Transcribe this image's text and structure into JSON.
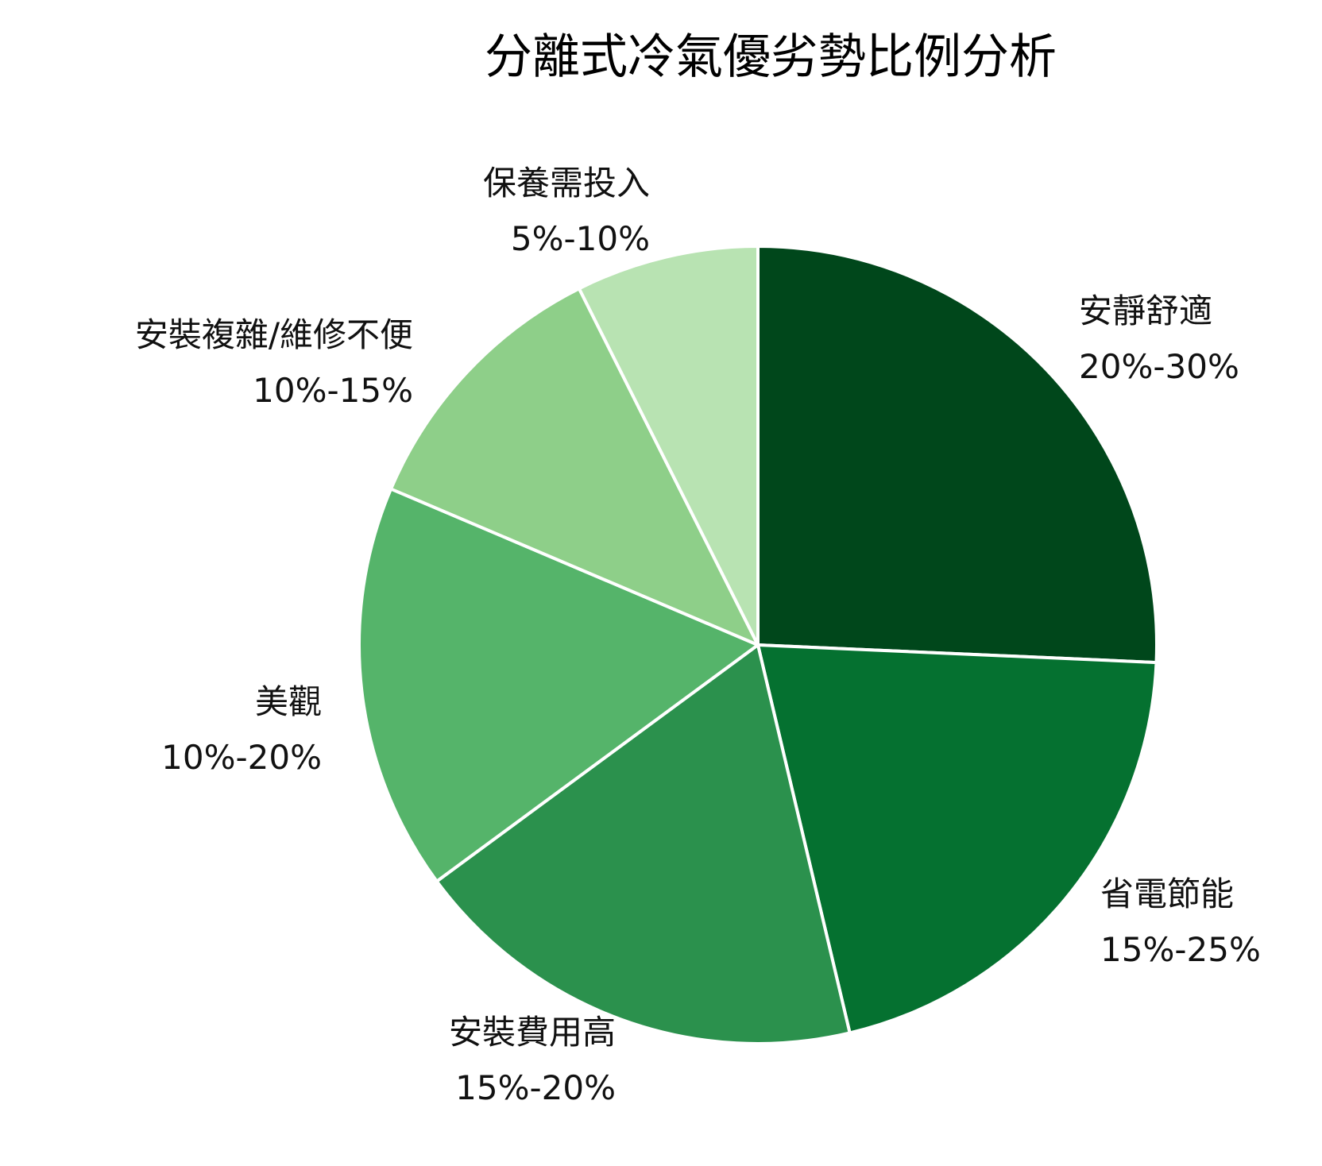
{
  "chart_data": {
    "type": "pie",
    "title": "分離式冷氣優劣勢比例分析",
    "start_angle_deg": 0,
    "direction": "clockwise",
    "slice_border_color": "#ffffff",
    "slices": [
      {
        "label": "安靜舒適",
        "range_text": "20%-30%",
        "value": 25.7,
        "color": "#00471b"
      },
      {
        "label": "省電節能",
        "range_text": "15%-25%",
        "value": 20.6,
        "color": "#057130"
      },
      {
        "label": "安裝費用高",
        "range_text": "15%-20%",
        "value": 18.6,
        "color": "#2b914d"
      },
      {
        "label": "美觀",
        "range_text": "10%-20%",
        "value": 16.5,
        "color": "#55b46a"
      },
      {
        "label": "安裝複雜/維修不便",
        "range_text": "10%-15%",
        "value": 11.2,
        "color": "#8ecf89"
      },
      {
        "label": "保養需投入",
        "range_text": "5%-10%",
        "value": 7.4,
        "color": "#b8e3b2"
      }
    ]
  }
}
